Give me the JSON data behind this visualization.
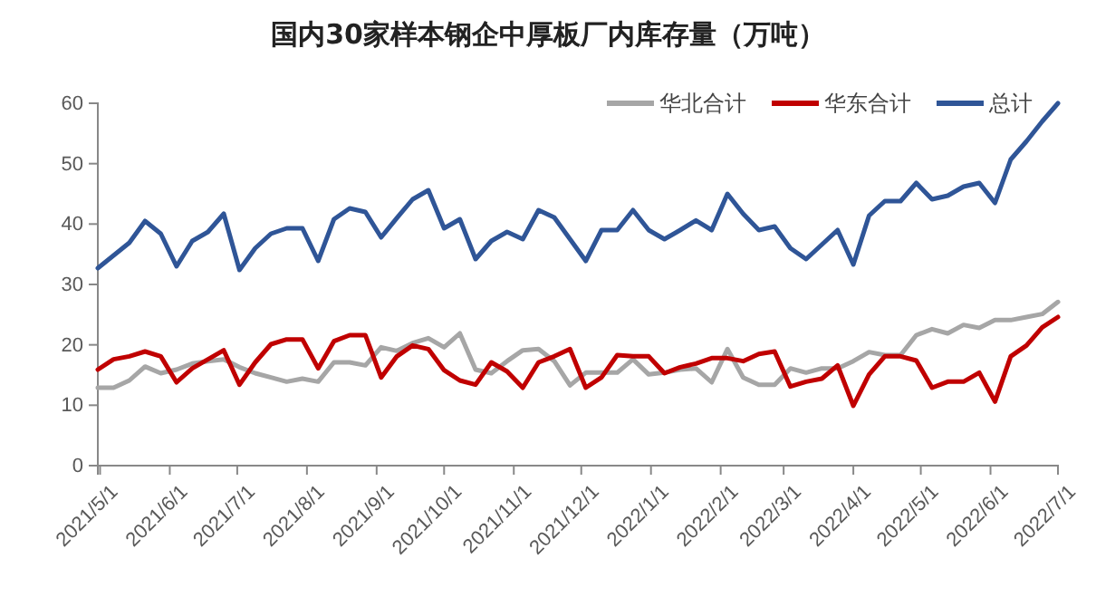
{
  "chart_data": {
    "type": "line",
    "title": "国内30家样本钢企中厚板厂内库存量（万吨）",
    "x": [
      "2021-04-30",
      "2021-05-07",
      "2021-05-14",
      "2021-05-21",
      "2021-05-28",
      "2021-06-04",
      "2021-06-11",
      "2021-06-18",
      "2021-06-25",
      "2021-07-02",
      "2021-07-09",
      "2021-07-16",
      "2021-07-23",
      "2021-07-30",
      "2021-08-06",
      "2021-08-13",
      "2021-08-20",
      "2021-08-27",
      "2021-09-03",
      "2021-09-10",
      "2021-09-17",
      "2021-09-24",
      "2021-10-01",
      "2021-10-08",
      "2021-10-15",
      "2021-10-22",
      "2021-10-29",
      "2021-11-05",
      "2021-11-12",
      "2021-11-19",
      "2021-11-26",
      "2021-12-03",
      "2021-12-10",
      "2021-12-17",
      "2021-12-24",
      "2021-12-31",
      "2022-01-07",
      "2022-01-14",
      "2022-01-21",
      "2022-01-28",
      "2022-02-04",
      "2022-02-11",
      "2022-02-18",
      "2022-02-25",
      "2022-03-04",
      "2022-03-11",
      "2022-03-18",
      "2022-03-25",
      "2022-04-01",
      "2022-04-08",
      "2022-04-15",
      "2022-04-22",
      "2022-04-29",
      "2022-05-06",
      "2022-05-13",
      "2022-05-20",
      "2022-05-27",
      "2022-06-03",
      "2022-06-10",
      "2022-06-17",
      "2022-06-24",
      "2022-07-01"
    ],
    "series": [
      {
        "name": "华北合计",
        "color": "#a6a6a6",
        "values": [
          12.9,
          12.9,
          14.1,
          16.4,
          15.3,
          15.9,
          16.9,
          17.3,
          17.6,
          16.3,
          15.3,
          14.6,
          13.9,
          14.4,
          13.9,
          17.1,
          17.1,
          16.6,
          19.6,
          19,
          20.3,
          21.1,
          19.6,
          21.9,
          15.9,
          15.3,
          17.3,
          19.1,
          19.3,
          17.3,
          13.3,
          15.4,
          15.4,
          15.4,
          17.6,
          15.1,
          15.4,
          15.9,
          16.1,
          13.8,
          19.3,
          14.6,
          13.4,
          13.4,
          16.1,
          15.4,
          16.1,
          16.1,
          17.3,
          18.8,
          18.3,
          18.3,
          21.6,
          22.6,
          21.9,
          23.3,
          22.8,
          24.1,
          24.1,
          24.6,
          25.1,
          27.1
        ]
      },
      {
        "name": "华东合计",
        "color": "#c00000",
        "values": [
          15.9,
          17.6,
          18.1,
          18.9,
          18.1,
          13.8,
          16.1,
          17.6,
          19.1,
          13.4,
          17.1,
          20.1,
          20.9,
          20.9,
          16.1,
          20.6,
          21.6,
          21.6,
          14.6,
          18.1,
          19.9,
          19.3,
          15.8,
          14.1,
          13.4,
          17.1,
          15.6,
          12.9,
          17.1,
          18.1,
          19.3,
          12.9,
          14.6,
          18.3,
          18.1,
          18.1,
          15.3,
          16.3,
          16.9,
          17.8,
          17.8,
          17.3,
          18.5,
          18.9,
          13.1,
          13.9,
          14.4,
          16.6,
          9.9,
          15.1,
          18.1,
          18.1,
          17.4,
          12.9,
          13.9,
          13.9,
          15.4,
          10.6,
          18.1,
          19.9,
          22.9,
          24.6
        ]
      },
      {
        "name": "总计",
        "color": "#2f5597",
        "values": [
          32.7,
          34.8,
          36.9,
          40.5,
          38.4,
          33,
          37.2,
          38.7,
          41.7,
          32.4,
          36,
          38.4,
          39.3,
          39.3,
          33.9,
          40.8,
          42.6,
          42,
          37.8,
          41,
          44.1,
          45.6,
          39.3,
          40.8,
          34.2,
          37.2,
          38.7,
          37.5,
          42.3,
          41.1,
          37.5,
          33.9,
          39,
          39,
          42.3,
          39,
          37.5,
          39,
          40.6,
          39,
          45,
          41.7,
          39,
          39.6,
          36,
          34.2,
          36.6,
          39,
          33.3,
          41.4,
          43.8,
          43.8,
          46.8,
          44.1,
          44.7,
          46.2,
          46.8,
          43.5,
          50.7,
          53.7,
          57,
          60
        ]
      }
    ],
    "xlim": [
      "2021-04-30",
      "2022-07-01"
    ],
    "xticks": [
      {
        "value": "2021-05-01",
        "label": "2021/5/1"
      },
      {
        "value": "2021-06-01",
        "label": "2021/6/1"
      },
      {
        "value": "2021-07-01",
        "label": "2021/7/1"
      },
      {
        "value": "2021-08-01",
        "label": "2021/8/1"
      },
      {
        "value": "2021-09-01",
        "label": "2021/9/1"
      },
      {
        "value": "2021-10-01",
        "label": "2021/10/1"
      },
      {
        "value": "2021-11-01",
        "label": "2021/11/1"
      },
      {
        "value": "2021-12-01",
        "label": "2021/12/1"
      },
      {
        "value": "2022-01-01",
        "label": "2022/1/1"
      },
      {
        "value": "2022-02-01",
        "label": "2022/2/1"
      },
      {
        "value": "2022-03-01",
        "label": "2022/3/1"
      },
      {
        "value": "2022-04-01",
        "label": "2022/4/1"
      },
      {
        "value": "2022-05-01",
        "label": "2022/5/1"
      },
      {
        "value": "2022-06-01",
        "label": "2022/6/1"
      },
      {
        "value": "2022-07-01",
        "label": "2022/7/1"
      }
    ],
    "ylim": [
      0,
      60
    ],
    "yticks": [
      0,
      10,
      20,
      30,
      40,
      50,
      60
    ],
    "grid": false,
    "legend": "top right",
    "marker": "none",
    "line_style": "solid"
  }
}
